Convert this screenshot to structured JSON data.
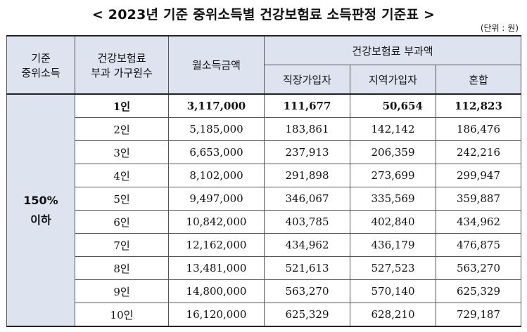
{
  "page": {
    "title": "< 2023년 기준 중위소득별 건강보험료 소득판정 기준표 >",
    "unit": "(단위 : 원)"
  },
  "table": {
    "headers": {
      "col1_line1": "기준",
      "col1_line2": "중위소득",
      "col2_line1": "건강보험료",
      "col2_line2": "부과 가구원수",
      "col3": "월소득금액",
      "group_header": "건강보험료 부과액",
      "sub1": "직장가입자",
      "sub2": "지역가입자",
      "sub3": "혼합"
    },
    "group_label_line1": "150%",
    "group_label_line2": "이하",
    "rows": [
      {
        "size": "1인",
        "income": "3,117,000",
        "employee": "111,677",
        "regional": "50,654",
        "mixed": "112,823"
      },
      {
        "size": "2인",
        "income": "5,185,000",
        "employee": "183,861",
        "regional": "142,142",
        "mixed": "186,476"
      },
      {
        "size": "3인",
        "income": "6,653,000",
        "employee": "237,913",
        "regional": "206,359",
        "mixed": "242,216"
      },
      {
        "size": "4인",
        "income": "8,102,000",
        "employee": "291,898",
        "regional": "273,699",
        "mixed": "299,947"
      },
      {
        "size": "5인",
        "income": "9,497,000",
        "employee": "346,067",
        "regional": "335,569",
        "mixed": "359,887"
      },
      {
        "size": "6인",
        "income": "10,842,000",
        "employee": "403,785",
        "regional": "402,840",
        "mixed": "434,962"
      },
      {
        "size": "7인",
        "income": "12,162,000",
        "employee": "434,962",
        "regional": "436,179",
        "mixed": "476,875"
      },
      {
        "size": "8인",
        "income": "13,481,000",
        "employee": "521,613",
        "regional": "527,523",
        "mixed": "563,270"
      },
      {
        "size": "9인",
        "income": "14,800,000",
        "employee": "563,270",
        "regional": "570,140",
        "mixed": "625,329"
      },
      {
        "size": "10인",
        "income": "16,120,000",
        "employee": "625,329",
        "regional": "628,210",
        "mixed": "729,187"
      }
    ]
  }
}
